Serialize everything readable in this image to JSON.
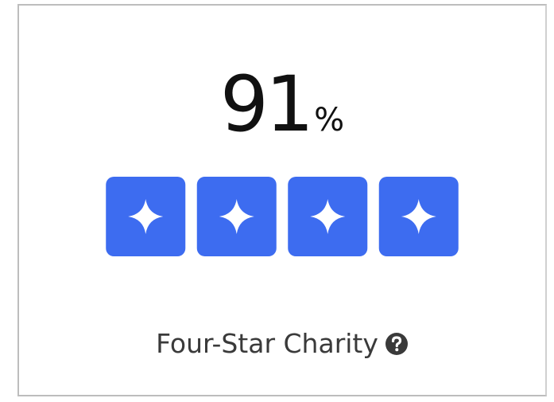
{
  "rating": {
    "score": 91,
    "unit": "%",
    "stars": 4,
    "label": "Four-Star Charity"
  }
}
